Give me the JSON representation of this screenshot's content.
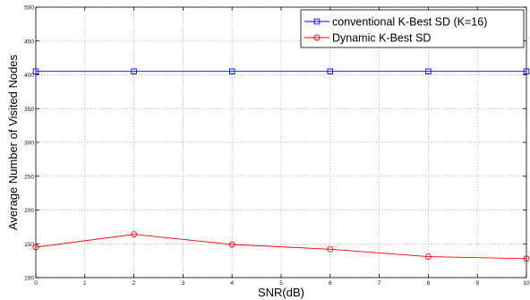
{
  "chart_data": {
    "type": "line",
    "xlabel": "SNR(dB)",
    "ylabel": "Average Number of Visited Nodes",
    "xlim": [
      0,
      10
    ],
    "ylim": [
      100,
      500
    ],
    "xticks": [
      "0",
      "1",
      "2",
      "3",
      "4",
      "5",
      "6",
      "7",
      "8",
      "9",
      "10"
    ],
    "yticks": [
      "100",
      "150",
      "200",
      "250",
      "300",
      "350",
      "400",
      "450",
      "500"
    ],
    "grid": true,
    "legend_position": "top-right",
    "series": [
      {
        "name": "conventional K-Best SD (K=16)",
        "color": "#0000ff",
        "marker": "square",
        "x": [
          0,
          2,
          4,
          6,
          8,
          10
        ],
        "y": [
          405,
          405,
          405,
          405,
          405,
          405
        ]
      },
      {
        "name": "Dynamic K-Best SD",
        "color": "#ff0000",
        "marker": "circle",
        "x": [
          0,
          2,
          4,
          6,
          8,
          10
        ],
        "y": [
          145,
          164,
          149,
          142,
          131,
          128
        ]
      }
    ]
  }
}
